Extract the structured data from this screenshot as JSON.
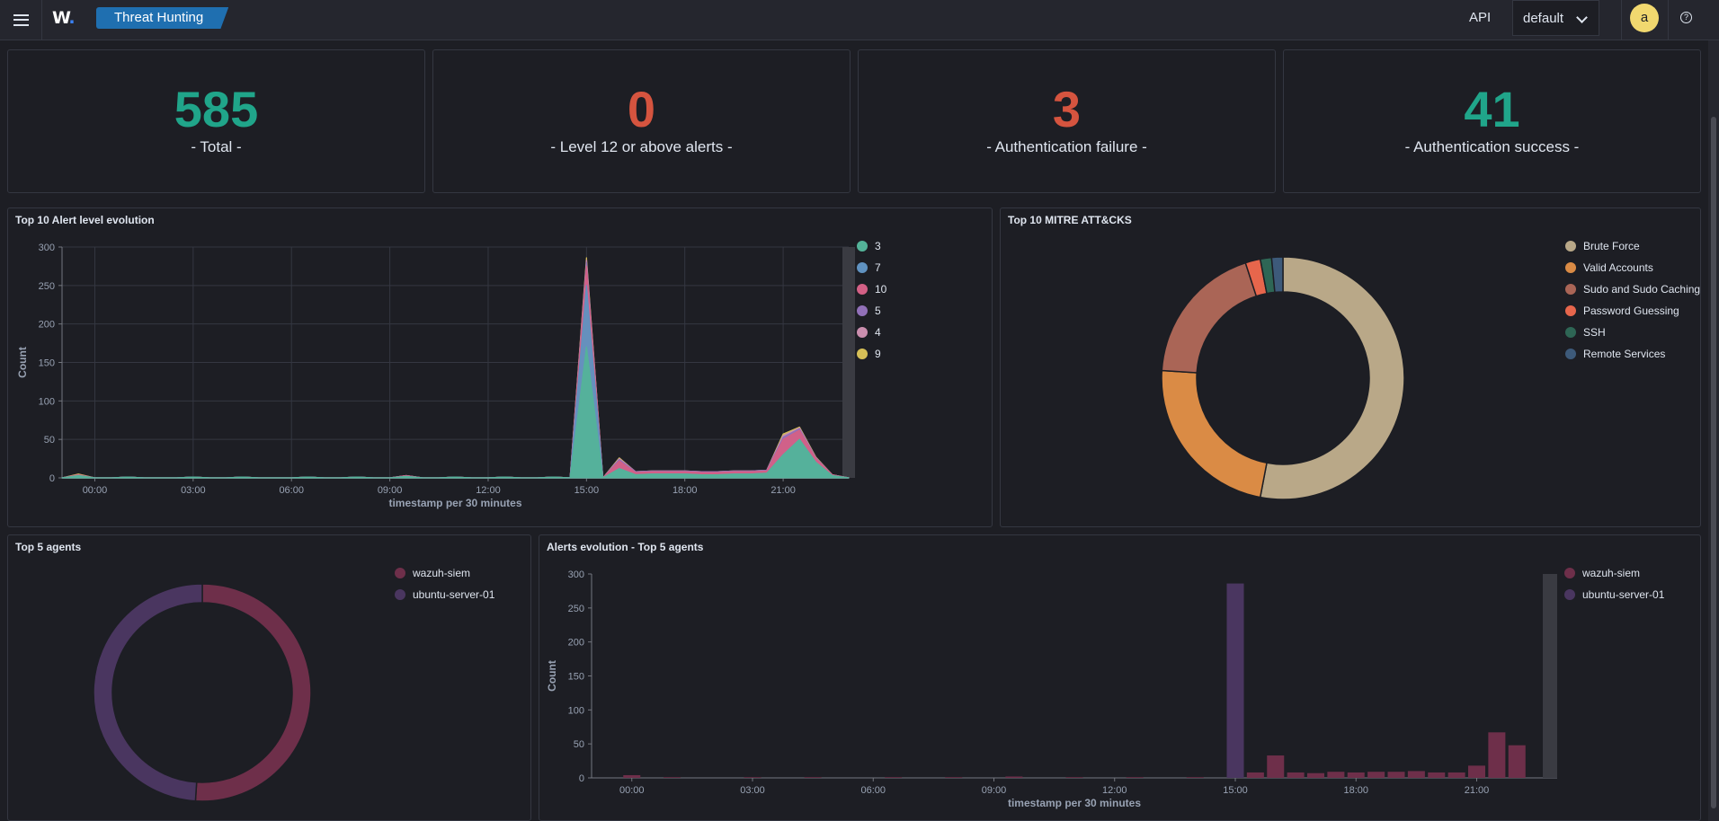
{
  "header": {
    "logo_text": "W",
    "logo_dot": ".",
    "breadcrumb": "Threat Hunting",
    "api_label": "API",
    "tenant_selected": "default",
    "avatar_initial": "a",
    "help_glyph": "?",
    "colors": {
      "breadcrumb": "#1f6fb0",
      "avatar": "#f1d86f"
    }
  },
  "metrics": [
    {
      "value": "585",
      "label": "- Total -",
      "color": "#20a58a"
    },
    {
      "value": "0",
      "label": "- Level 12 or above alerts -",
      "color": "#d5543f"
    },
    {
      "value": "3",
      "label": "- Authentication failure -",
      "color": "#d5543f"
    },
    {
      "value": "41",
      "label": "- Authentication success -",
      "color": "#20a58a"
    }
  ],
  "panels": {
    "alert_level": {
      "title": "Top 10 Alert level evolution"
    },
    "mitre": {
      "title": "Top 10 MITRE ATT&CKS"
    },
    "agents": {
      "title": "Top 5 agents"
    },
    "agents_evolution": {
      "title": "Alerts evolution - Top 5 agents"
    }
  },
  "chart_data": [
    {
      "id": "alert_level",
      "type": "area",
      "title": "Top 10 Alert level evolution",
      "xlabel": "timestamp per 30 minutes",
      "ylabel": "Count",
      "ylim": [
        0,
        300
      ],
      "yticks": [
        "0",
        "50",
        "100",
        "150",
        "200",
        "250",
        "300"
      ],
      "xticks": [
        "00:00",
        "03:00",
        "06:00",
        "09:00",
        "12:00",
        "15:00",
        "18:00",
        "21:00"
      ],
      "grid": true,
      "legend_position": "right",
      "x": [
        "23:00",
        "23:30",
        "00:00",
        "00:30",
        "01:00",
        "01:30",
        "02:00",
        "02:30",
        "03:00",
        "03:30",
        "04:00",
        "04:30",
        "05:00",
        "05:30",
        "06:00",
        "06:30",
        "07:00",
        "07:30",
        "08:00",
        "08:30",
        "09:00",
        "09:30",
        "10:00",
        "10:30",
        "11:00",
        "11:30",
        "12:00",
        "12:30",
        "13:00",
        "13:30",
        "14:00",
        "14:30",
        "15:00",
        "15:30",
        "16:00",
        "16:30",
        "17:00",
        "17:30",
        "18:00",
        "18:30",
        "19:00",
        "19:30",
        "20:00",
        "20:30",
        "21:00",
        "21:30",
        "22:00",
        "22:30",
        "23:00"
      ],
      "series": [
        {
          "name": "3",
          "color": "#54b399",
          "values": [
            0,
            3,
            0,
            0,
            1,
            0,
            0,
            0,
            1,
            0,
            0,
            1,
            0,
            0,
            0,
            1,
            0,
            0,
            1,
            0,
            0,
            2,
            0,
            0,
            1,
            0,
            0,
            1,
            0,
            0,
            1,
            0,
            170,
            0,
            12,
            4,
            5,
            5,
            5,
            4,
            4,
            5,
            5,
            6,
            30,
            50,
            20,
            3,
            0
          ]
        },
        {
          "name": "7",
          "color": "#6092c0",
          "values": [
            0,
            0,
            0,
            0,
            0,
            0,
            0,
            0,
            0,
            0,
            0,
            0,
            0,
            0,
            0,
            0,
            0,
            0,
            0,
            0,
            0,
            0,
            0,
            0,
            0,
            0,
            0,
            0,
            0,
            0,
            0,
            0,
            80,
            0,
            0,
            0,
            0,
            0,
            0,
            0,
            0,
            0,
            0,
            0,
            0,
            0,
            0,
            0,
            0
          ]
        },
        {
          "name": "10",
          "color": "#d36086",
          "values": [
            0,
            1,
            0,
            0,
            0,
            0,
            0,
            0,
            0,
            0,
            0,
            0,
            0,
            0,
            0,
            0,
            0,
            0,
            0,
            0,
            0,
            1,
            0,
            0,
            0,
            0,
            0,
            0,
            0,
            0,
            0,
            0,
            25,
            0,
            10,
            3,
            3,
            3,
            3,
            3,
            3,
            3,
            3,
            3,
            20,
            12,
            5,
            1,
            0
          ]
        },
        {
          "name": "5",
          "color": "#9170b8",
          "values": [
            0,
            0,
            0,
            0,
            0,
            0,
            0,
            0,
            0,
            0,
            0,
            0,
            0,
            0,
            0,
            0,
            0,
            0,
            0,
            0,
            0,
            0,
            0,
            0,
            0,
            0,
            0,
            0,
            0,
            0,
            0,
            0,
            5,
            0,
            2,
            1,
            1,
            1,
            1,
            1,
            1,
            1,
            1,
            1,
            3,
            2,
            1,
            0,
            0
          ]
        },
        {
          "name": "4",
          "color": "#ca8eae",
          "values": [
            0,
            0,
            0,
            0,
            0,
            0,
            0,
            0,
            0,
            0,
            0,
            0,
            0,
            0,
            0,
            0,
            0,
            0,
            0,
            0,
            0,
            0,
            0,
            0,
            0,
            0,
            0,
            0,
            0,
            0,
            0,
            0,
            3,
            0,
            1,
            0,
            0,
            0,
            0,
            0,
            0,
            0,
            0,
            0,
            2,
            1,
            0,
            0,
            0
          ]
        },
        {
          "name": "9",
          "color": "#d6bf57",
          "values": [
            0,
            1,
            0,
            0,
            0,
            0,
            0,
            0,
            0,
            0,
            0,
            0,
            0,
            0,
            0,
            0,
            0,
            0,
            0,
            0,
            0,
            0,
            0,
            0,
            0,
            0,
            0,
            0,
            0,
            0,
            0,
            0,
            3,
            0,
            1,
            0,
            0,
            0,
            0,
            0,
            0,
            0,
            0,
            0,
            2,
            1,
            1,
            0,
            0
          ]
        }
      ]
    },
    {
      "id": "mitre",
      "type": "pie",
      "title": "Top 10 MITRE ATT&CKS",
      "legend_position": "right",
      "series": [
        {
          "name": "Brute Force",
          "value": 53,
          "color": "#b9a888"
        },
        {
          "name": "Valid Accounts",
          "value": 23,
          "color": "#da8b45"
        },
        {
          "name": "Sudo and Sudo Caching",
          "value": 19,
          "color": "#aa6556"
        },
        {
          "name": "Password Guessing",
          "value": 2,
          "color": "#e7664c"
        },
        {
          "name": "SSH",
          "value": 1.5,
          "color": "#2e6655"
        },
        {
          "name": "Remote Services",
          "value": 1.5,
          "color": "#3d5a7a"
        }
      ]
    },
    {
      "id": "agents",
      "type": "pie",
      "title": "Top 5 agents",
      "legend_position": "right",
      "series": [
        {
          "name": "wazuh-siem",
          "value": 51,
          "color": "#6e2f4a"
        },
        {
          "name": "ubuntu-server-01",
          "value": 49,
          "color": "#4a3660"
        }
      ]
    },
    {
      "id": "agents_evolution",
      "type": "bar",
      "title": "Alerts evolution - Top 5 agents",
      "xlabel": "timestamp per 30 minutes",
      "ylabel": "Count",
      "ylim": [
        0,
        300
      ],
      "yticks": [
        "0",
        "50",
        "100",
        "150",
        "200",
        "250",
        "300"
      ],
      "xticks": [
        "00:00",
        "03:00",
        "06:00",
        "09:00",
        "12:00",
        "15:00",
        "18:00",
        "21:00"
      ],
      "legend_position": "right",
      "x": [
        "23:00",
        "23:30",
        "00:00",
        "00:30",
        "01:00",
        "01:30",
        "02:00",
        "02:30",
        "03:00",
        "03:30",
        "04:00",
        "04:30",
        "05:00",
        "05:30",
        "06:00",
        "06:30",
        "07:00",
        "07:30",
        "08:00",
        "08:30",
        "09:00",
        "09:30",
        "10:00",
        "10:30",
        "11:00",
        "11:30",
        "12:00",
        "12:30",
        "13:00",
        "13:30",
        "14:00",
        "14:30",
        "15:00",
        "15:30",
        "16:00",
        "16:30",
        "17:00",
        "17:30",
        "18:00",
        "18:30",
        "19:00",
        "19:30",
        "20:00",
        "20:30",
        "21:00",
        "21:30",
        "22:00",
        "22:30",
        "23:00"
      ],
      "series": [
        {
          "name": "wazuh-siem",
          "color": "#6e2f4a",
          "values": [
            0,
            0,
            4,
            0,
            1,
            0,
            0,
            0,
            1,
            0,
            0,
            1,
            0,
            0,
            0,
            1,
            0,
            0,
            1,
            0,
            0,
            2,
            0,
            0,
            1,
            0,
            0,
            1,
            0,
            0,
            1,
            0,
            0,
            8,
            33,
            8,
            7,
            9,
            8,
            9,
            9,
            10,
            8,
            8,
            18,
            67,
            48,
            0,
            0
          ]
        },
        {
          "name": "ubuntu-server-01",
          "color": "#4a3660",
          "values": [
            0,
            0,
            0,
            0,
            0,
            0,
            0,
            0,
            0,
            0,
            0,
            0,
            0,
            0,
            0,
            0,
            0,
            0,
            0,
            0,
            0,
            0,
            0,
            0,
            0,
            0,
            0,
            0,
            0,
            0,
            0,
            0,
            286,
            0,
            0,
            0,
            0,
            0,
            0,
            0,
            0,
            0,
            0,
            0,
            0,
            0,
            0,
            0,
            0
          ]
        }
      ]
    }
  ]
}
